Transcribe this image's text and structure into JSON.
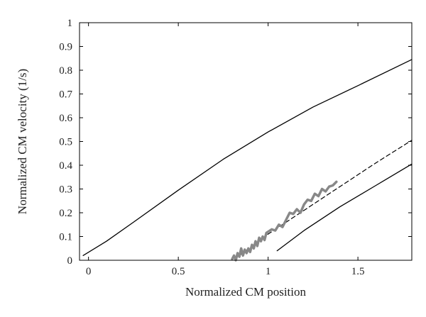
{
  "chart_data": {
    "type": "line",
    "title": "",
    "xlabel": "Normalized CM position",
    "ylabel": "Normalized CM velocity (1/s)",
    "xlim": [
      -0.05,
      1.8
    ],
    "ylim": [
      0,
      1
    ],
    "xticks": [
      0,
      0.5,
      1,
      1.5
    ],
    "xtick_labels": [
      "0",
      "0.5",
      "1",
      "1.5"
    ],
    "yticks": [
      0,
      0.1,
      0.2,
      0.3,
      0.4,
      0.5,
      0.6,
      0.7,
      0.8,
      0.9,
      1
    ],
    "ytick_labels": [
      "0",
      "0.1",
      "0.2",
      "0.3",
      "0.4",
      "0.5",
      "0.6",
      "0.7",
      "0.8",
      "0.9",
      "1"
    ],
    "grid": false,
    "legend": "none",
    "series": [
      {
        "style": "solid-black",
        "color": "#000000",
        "x": [
          -0.03,
          0.1,
          0.25,
          0.5,
          0.75,
          1.0,
          1.25,
          1.5,
          1.8
        ],
        "y": [
          0.02,
          0.08,
          0.16,
          0.295,
          0.425,
          0.54,
          0.645,
          0.735,
          0.845
        ]
      },
      {
        "style": "dashed-black",
        "color": "#000000",
        "x": [
          0.84,
          1.0,
          1.2,
          1.4,
          1.6,
          1.8
        ],
        "y": [
          0.02,
          0.11,
          0.21,
          0.31,
          0.41,
          0.505
        ]
      },
      {
        "style": "solid-black",
        "color": "#000000",
        "x": [
          1.05,
          1.2,
          1.4,
          1.6,
          1.8
        ],
        "y": [
          0.04,
          0.125,
          0.225,
          0.315,
          0.405
        ]
      },
      {
        "style": "thick-gray-noisy",
        "color": "#888888",
        "x": [
          0.8,
          0.81,
          0.82,
          0.83,
          0.84,
          0.85,
          0.86,
          0.87,
          0.88,
          0.89,
          0.9,
          0.91,
          0.92,
          0.93,
          0.94,
          0.95,
          0.96,
          0.97,
          0.98,
          0.99,
          1.0,
          1.02,
          1.04,
          1.06,
          1.08,
          1.1,
          1.12,
          1.14,
          1.16,
          1.18,
          1.2,
          1.22,
          1.24,
          1.26,
          1.28,
          1.3,
          1.32,
          1.34,
          1.36,
          1.38
        ],
        "y": [
          0.005,
          0.02,
          0.0,
          0.03,
          0.015,
          0.05,
          0.02,
          0.045,
          0.03,
          0.05,
          0.035,
          0.065,
          0.05,
          0.08,
          0.06,
          0.095,
          0.08,
          0.1,
          0.085,
          0.115,
          0.12,
          0.13,
          0.125,
          0.15,
          0.14,
          0.17,
          0.2,
          0.195,
          0.215,
          0.2,
          0.235,
          0.255,
          0.25,
          0.28,
          0.27,
          0.3,
          0.29,
          0.31,
          0.315,
          0.33
        ]
      }
    ]
  }
}
